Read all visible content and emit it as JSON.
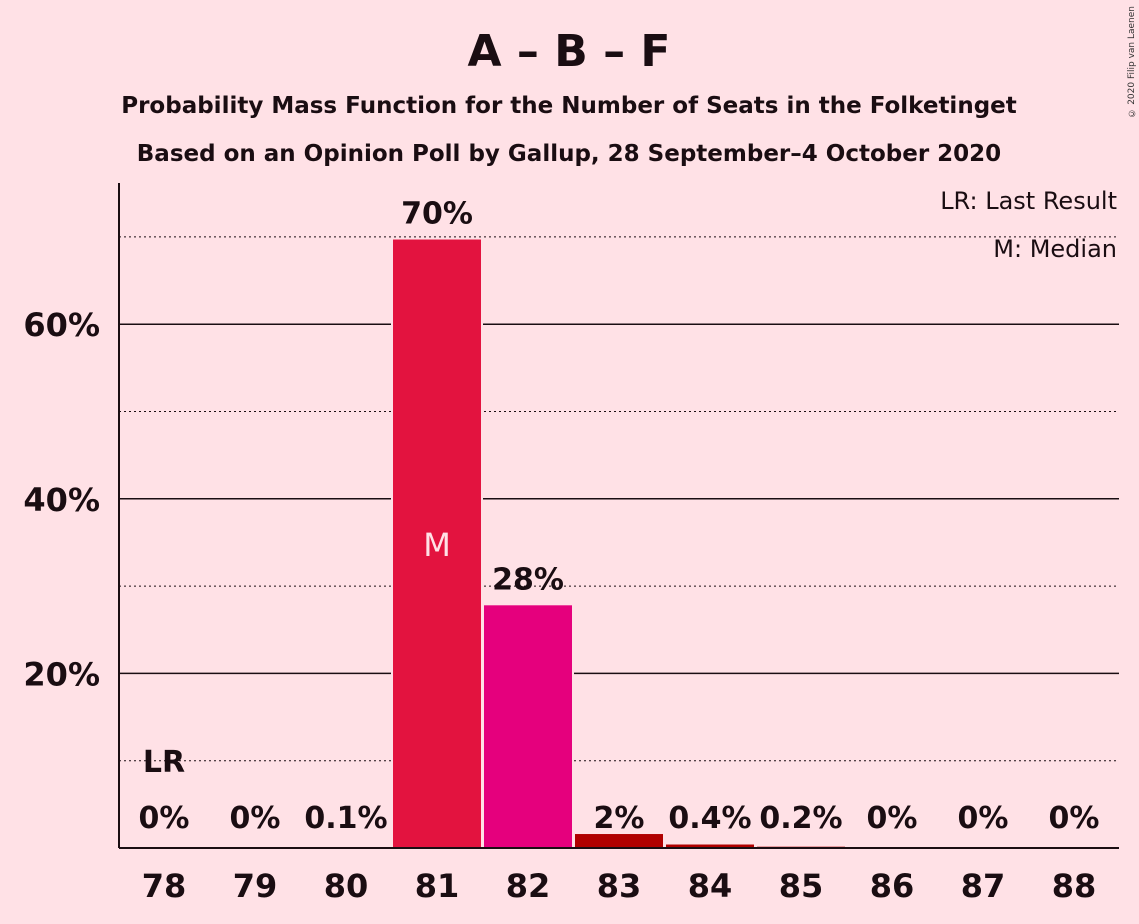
{
  "chart_data": {
    "type": "bar",
    "title": "A – B – F",
    "subtitle": "Probability Mass Function for the Number of Seats in the Folketinget",
    "subtitle2": "Based on an Opinion Poll by Gallup, 28 September–4 October 2020",
    "copyright": "© 2020 Filip van Laenen",
    "legend": [
      "LR: Last Result",
      "M: Median"
    ],
    "legend_position": "top-right",
    "categories": [
      "78",
      "79",
      "80",
      "81",
      "82",
      "83",
      "84",
      "85",
      "86",
      "87",
      "88"
    ],
    "values": [
      0,
      0,
      0.1,
      70,
      28,
      2,
      0.4,
      0.2,
      0,
      0,
      0
    ],
    "plot_values": [
      0,
      0,
      0.05,
      69.7,
      27.8,
      1.6,
      0.4,
      0.15,
      0,
      0,
      0
    ],
    "value_labels": [
      "0%",
      "0%",
      "0.1%",
      "70%",
      "28%",
      "2%",
      "0.4%",
      "0.2%",
      "0%",
      "0%",
      "0%"
    ],
    "bar_colors": [
      "#E3133F",
      "#E3133F",
      "#E3133F",
      "#E3133F",
      "#E5007D",
      "#B00000",
      "#B00000",
      "#B00000",
      "#E3133F",
      "#E3133F",
      "#E3133F"
    ],
    "median_index": 3,
    "median_label": "M",
    "last_result_index": 0,
    "last_result_label": "LR",
    "yticks": [
      20,
      40,
      60
    ],
    "ytick_labels": [
      "20%",
      "40%",
      "60%"
    ],
    "minor_gridlines": [
      10,
      30,
      50,
      70
    ],
    "ylim": [
      0,
      76
    ],
    "grid": true
  }
}
